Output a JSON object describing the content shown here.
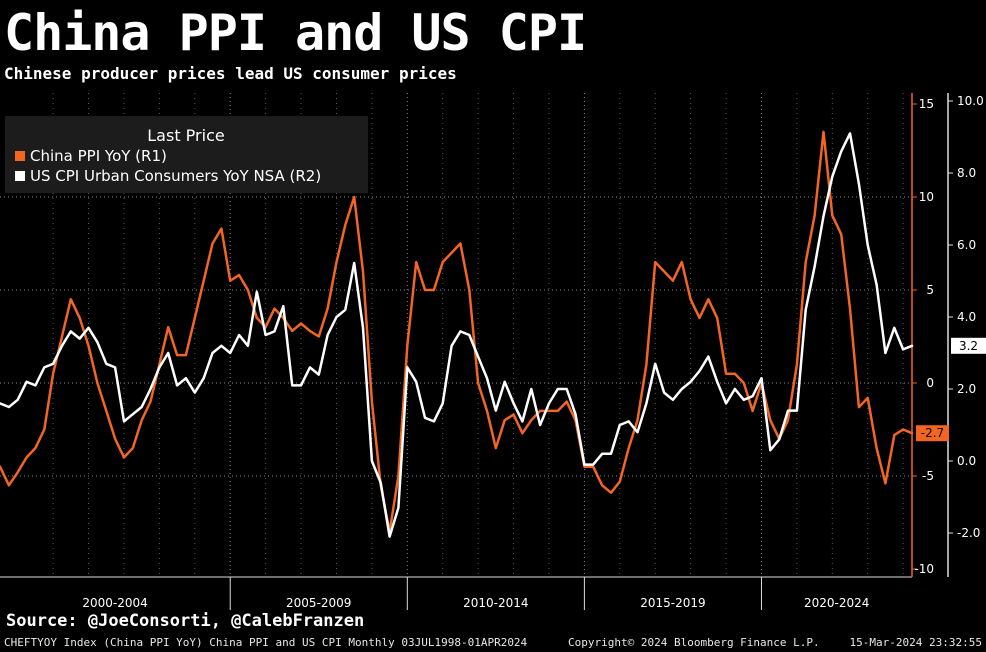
{
  "header": {
    "title": "China PPI and US CPI",
    "subtitle": "Chinese producer prices lead US consumer prices"
  },
  "footer": {
    "source": "Source: @JoeConsorti, @CalebFranzen",
    "index_info": "CHEFTYOY Index (China PPI YoY) China PPI and US CPI  Monthly 03JUL1998-01APR2024",
    "copyright": "Copyright© 2024 Bloomberg Finance L.P.",
    "timestamp": "15-Mar-2024 23:32:55"
  },
  "colors": {
    "ppi": "#f26522",
    "cpi": "#ffffff",
    "background": "#000000",
    "legend_bg": "#1c1c1c"
  },
  "chart_data": {
    "type": "line",
    "legend": {
      "title": "Last Price",
      "placement": "top-left",
      "entries": [
        "China PPI YoY  (R1)",
        "US CPI Urban Consumers YoY NSA  (R2)"
      ]
    },
    "x_range": [
      1998.5,
      2024.25
    ],
    "x_groups": [
      {
        "label": "2000-2004",
        "start": 1998.5,
        "end": 2005.0
      },
      {
        "label": "2005-2009",
        "start": 2005.0,
        "end": 2010.0
      },
      {
        "label": "2010-2014",
        "start": 2010.0,
        "end": 2015.0
      },
      {
        "label": "2015-2019",
        "start": 2015.0,
        "end": 2020.0
      },
      {
        "label": "2020-2024",
        "start": 2020.0,
        "end": 2024.25
      }
    ],
    "axes": {
      "r1": {
        "min": -10,
        "max": 15,
        "ticks": [
          -10,
          -5,
          0,
          5,
          10,
          15
        ],
        "tick_labels": [
          "-10",
          "-5",
          "0",
          "5",
          "10",
          "15"
        ]
      },
      "r2": {
        "min": -2.6,
        "max": 10.2,
        "ticks": [
          -2,
          0,
          2,
          4,
          6,
          8,
          10
        ],
        "tick_labels": [
          "-2.0",
          "0.0",
          "2.0",
          "4.0",
          "6.0",
          "8.0",
          "10.0"
        ]
      }
    },
    "series": [
      {
        "name": "China PPI YoY  (R1)",
        "axis": "r1",
        "last_value_label": "-2.7",
        "last_value": -2.7,
        "points": [
          [
            1998.5,
            -4.5
          ],
          [
            1998.75,
            -5.5
          ],
          [
            1999.0,
            -4.8
          ],
          [
            1999.25,
            -4.0
          ],
          [
            1999.5,
            -3.5
          ],
          [
            1999.75,
            -2.5
          ],
          [
            2000.0,
            0.5
          ],
          [
            2000.25,
            2.5
          ],
          [
            2000.5,
            4.5
          ],
          [
            2000.75,
            3.5
          ],
          [
            2001.0,
            2.0
          ],
          [
            2001.25,
            0.0
          ],
          [
            2001.5,
            -1.5
          ],
          [
            2001.75,
            -3.0
          ],
          [
            2002.0,
            -4.0
          ],
          [
            2002.25,
            -3.5
          ],
          [
            2002.5,
            -2.0
          ],
          [
            2002.75,
            -1.0
          ],
          [
            2003.0,
            1.0
          ],
          [
            2003.25,
            3.0
          ],
          [
            2003.5,
            1.5
          ],
          [
            2003.75,
            1.5
          ],
          [
            2004.0,
            3.5
          ],
          [
            2004.25,
            5.5
          ],
          [
            2004.5,
            7.5
          ],
          [
            2004.75,
            8.3
          ],
          [
            2005.0,
            5.5
          ],
          [
            2005.25,
            5.8
          ],
          [
            2005.5,
            5.0
          ],
          [
            2005.75,
            3.5
          ],
          [
            2006.0,
            3.0
          ],
          [
            2006.25,
            4.0
          ],
          [
            2006.5,
            3.5
          ],
          [
            2006.75,
            2.8
          ],
          [
            2007.0,
            3.2
          ],
          [
            2007.25,
            2.8
          ],
          [
            2007.5,
            2.5
          ],
          [
            2007.75,
            4.0
          ],
          [
            2008.0,
            6.5
          ],
          [
            2008.25,
            8.5
          ],
          [
            2008.5,
            10.0
          ],
          [
            2008.75,
            6.0
          ],
          [
            2009.0,
            -1.0
          ],
          [
            2009.25,
            -5.5
          ],
          [
            2009.5,
            -8.0
          ],
          [
            2009.75,
            -5.0
          ],
          [
            2010.0,
            2.0
          ],
          [
            2010.25,
            6.5
          ],
          [
            2010.5,
            5.0
          ],
          [
            2010.75,
            5.0
          ],
          [
            2011.0,
            6.5
          ],
          [
            2011.25,
            7.0
          ],
          [
            2011.5,
            7.5
          ],
          [
            2011.75,
            5.0
          ],
          [
            2012.0,
            0.0
          ],
          [
            2012.25,
            -1.5
          ],
          [
            2012.5,
            -3.5
          ],
          [
            2012.75,
            -2.0
          ],
          [
            2013.0,
            -1.7
          ],
          [
            2013.25,
            -2.7
          ],
          [
            2013.5,
            -2.0
          ],
          [
            2013.75,
            -1.5
          ],
          [
            2014.0,
            -1.5
          ],
          [
            2014.25,
            -1.5
          ],
          [
            2014.5,
            -1.0
          ],
          [
            2014.75,
            -2.0
          ],
          [
            2015.0,
            -4.5
          ],
          [
            2015.25,
            -4.5
          ],
          [
            2015.5,
            -5.5
          ],
          [
            2015.75,
            -5.9
          ],
          [
            2016.0,
            -5.3
          ],
          [
            2016.25,
            -3.5
          ],
          [
            2016.5,
            -2.0
          ],
          [
            2016.75,
            1.0
          ],
          [
            2017.0,
            6.5
          ],
          [
            2017.25,
            6.0
          ],
          [
            2017.5,
            5.5
          ],
          [
            2017.75,
            6.5
          ],
          [
            2018.0,
            4.5
          ],
          [
            2018.25,
            3.5
          ],
          [
            2018.5,
            4.5
          ],
          [
            2018.75,
            3.5
          ],
          [
            2019.0,
            0.5
          ],
          [
            2019.25,
            0.5
          ],
          [
            2019.5,
            0.0
          ],
          [
            2019.75,
            -1.5
          ],
          [
            2020.0,
            0.0
          ],
          [
            2020.25,
            -2.0
          ],
          [
            2020.5,
            -3.0
          ],
          [
            2020.75,
            -2.0
          ],
          [
            2021.0,
            1.0
          ],
          [
            2021.25,
            6.5
          ],
          [
            2021.5,
            9.0
          ],
          [
            2021.75,
            13.5
          ],
          [
            2022.0,
            9.0
          ],
          [
            2022.25,
            8.0
          ],
          [
            2022.5,
            4.0
          ],
          [
            2022.75,
            -1.3
          ],
          [
            2023.0,
            -0.8
          ],
          [
            2023.25,
            -3.5
          ],
          [
            2023.5,
            -5.4
          ],
          [
            2023.75,
            -2.8
          ],
          [
            2024.0,
            -2.5
          ],
          [
            2024.25,
            -2.7
          ]
        ]
      },
      {
        "name": "US CPI Urban Consumers YoY NSA  (R2)",
        "axis": "r2",
        "last_value_label": "3.2",
        "last_value": 3.2,
        "points": [
          [
            1998.5,
            1.6
          ],
          [
            1998.75,
            1.5
          ],
          [
            1999.0,
            1.7
          ],
          [
            1999.25,
            2.2
          ],
          [
            1999.5,
            2.1
          ],
          [
            1999.75,
            2.6
          ],
          [
            2000.0,
            2.7
          ],
          [
            2000.25,
            3.2
          ],
          [
            2000.5,
            3.6
          ],
          [
            2000.75,
            3.4
          ],
          [
            2001.0,
            3.7
          ],
          [
            2001.25,
            3.3
          ],
          [
            2001.5,
            2.7
          ],
          [
            2001.75,
            2.6
          ],
          [
            2002.0,
            1.1
          ],
          [
            2002.25,
            1.3
          ],
          [
            2002.5,
            1.5
          ],
          [
            2002.75,
            2.0
          ],
          [
            2003.0,
            2.6
          ],
          [
            2003.25,
            3.0
          ],
          [
            2003.5,
            2.1
          ],
          [
            2003.75,
            2.3
          ],
          [
            2004.0,
            1.9
          ],
          [
            2004.25,
            2.3
          ],
          [
            2004.5,
            3.0
          ],
          [
            2004.75,
            3.2
          ],
          [
            2005.0,
            3.0
          ],
          [
            2005.25,
            3.5
          ],
          [
            2005.5,
            3.2
          ],
          [
            2005.75,
            4.7
          ],
          [
            2006.0,
            3.5
          ],
          [
            2006.25,
            3.6
          ],
          [
            2006.5,
            4.3
          ],
          [
            2006.75,
            2.1
          ],
          [
            2007.0,
            2.1
          ],
          [
            2007.25,
            2.6
          ],
          [
            2007.5,
            2.4
          ],
          [
            2007.75,
            3.5
          ],
          [
            2008.0,
            4.0
          ],
          [
            2008.25,
            4.2
          ],
          [
            2008.5,
            5.5
          ],
          [
            2008.75,
            3.7
          ],
          [
            2009.0,
            0.0
          ],
          [
            2009.25,
            -0.6
          ],
          [
            2009.5,
            -2.1
          ],
          [
            2009.75,
            -1.3
          ],
          [
            2010.0,
            2.6
          ],
          [
            2010.25,
            2.2
          ],
          [
            2010.5,
            1.2
          ],
          [
            2010.75,
            1.1
          ],
          [
            2011.0,
            1.6
          ],
          [
            2011.25,
            3.2
          ],
          [
            2011.5,
            3.6
          ],
          [
            2011.75,
            3.5
          ],
          [
            2012.0,
            2.9
          ],
          [
            2012.25,
            2.3
          ],
          [
            2012.5,
            1.4
          ],
          [
            2012.75,
            2.2
          ],
          [
            2013.0,
            1.6
          ],
          [
            2013.25,
            1.1
          ],
          [
            2013.5,
            2.0
          ],
          [
            2013.75,
            1.0
          ],
          [
            2014.0,
            1.6
          ],
          [
            2014.25,
            2.0
          ],
          [
            2014.5,
            2.0
          ],
          [
            2014.75,
            1.3
          ],
          [
            2015.0,
            -0.1
          ],
          [
            2015.25,
            -0.1
          ],
          [
            2015.5,
            0.2
          ],
          [
            2015.75,
            0.2
          ],
          [
            2016.0,
            1.0
          ],
          [
            2016.25,
            1.1
          ],
          [
            2016.5,
            0.8
          ],
          [
            2016.75,
            1.6
          ],
          [
            2017.0,
            2.7
          ],
          [
            2017.25,
            1.9
          ],
          [
            2017.5,
            1.7
          ],
          [
            2017.75,
            2.0
          ],
          [
            2018.0,
            2.2
          ],
          [
            2018.25,
            2.5
          ],
          [
            2018.5,
            2.9
          ],
          [
            2018.75,
            2.2
          ],
          [
            2019.0,
            1.6
          ],
          [
            2019.25,
            2.0
          ],
          [
            2019.5,
            1.7
          ],
          [
            2019.75,
            1.8
          ],
          [
            2020.0,
            2.3
          ],
          [
            2020.25,
            0.3
          ],
          [
            2020.5,
            0.6
          ],
          [
            2020.75,
            1.4
          ],
          [
            2021.0,
            1.4
          ],
          [
            2021.25,
            4.2
          ],
          [
            2021.5,
            5.4
          ],
          [
            2021.75,
            6.8
          ],
          [
            2022.0,
            7.9
          ],
          [
            2022.25,
            8.6
          ],
          [
            2022.5,
            9.1
          ],
          [
            2022.75,
            7.7
          ],
          [
            2023.0,
            6.0
          ],
          [
            2023.25,
            4.9
          ],
          [
            2023.5,
            3.0
          ],
          [
            2023.75,
            3.7
          ],
          [
            2024.0,
            3.1
          ],
          [
            2024.25,
            3.2
          ]
        ]
      }
    ]
  }
}
